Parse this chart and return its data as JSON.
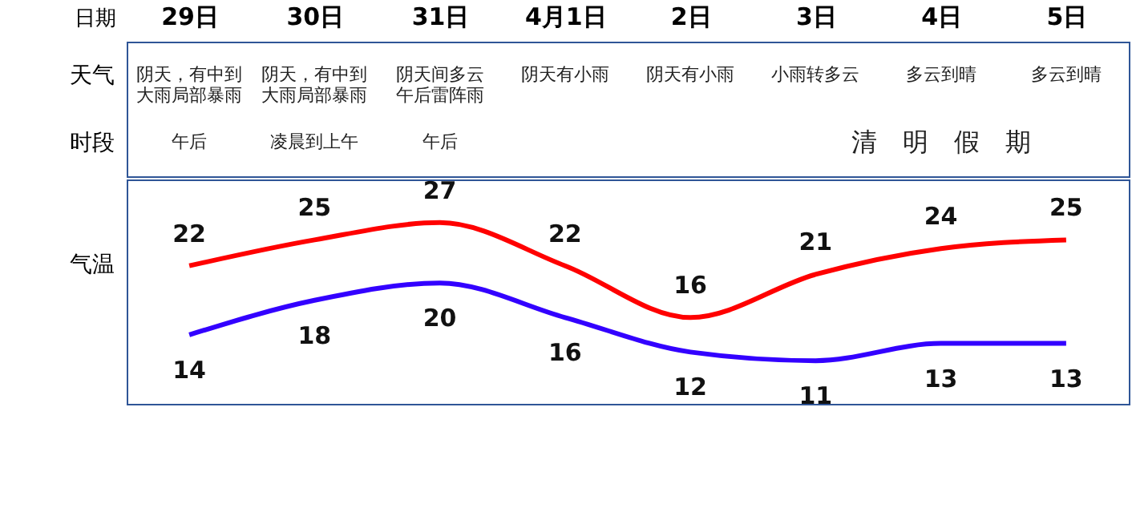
{
  "chart_data": {
    "type": "line",
    "xlabel": "日期",
    "ylabel": "气温",
    "categories": [
      "29日",
      "30日",
      "31日",
      "4月1日",
      "2日",
      "3日",
      "4日",
      "5日"
    ],
    "series": [
      {
        "color": "#ff0000",
        "values": [
          22,
          25,
          27,
          22,
          16,
          21,
          24,
          25
        ]
      },
      {
        "color": "#3300ff",
        "values": [
          14,
          18,
          20,
          16,
          12,
          11,
          13,
          13
        ]
      }
    ],
    "data_labels": true,
    "annotations": [
      "天气",
      "阴天，有中到大雨局部暴雨",
      "阴天，有中到大雨局部暴雨",
      "阴天间多云午后雷阵雨",
      "阴天有小雨",
      "阴天有小雨",
      "小雨转多云",
      "多云到晴",
      "多云到晴",
      "时段",
      "午后",
      "凌晨到上午",
      "午后",
      "清　明　假　期"
    ]
  }
}
